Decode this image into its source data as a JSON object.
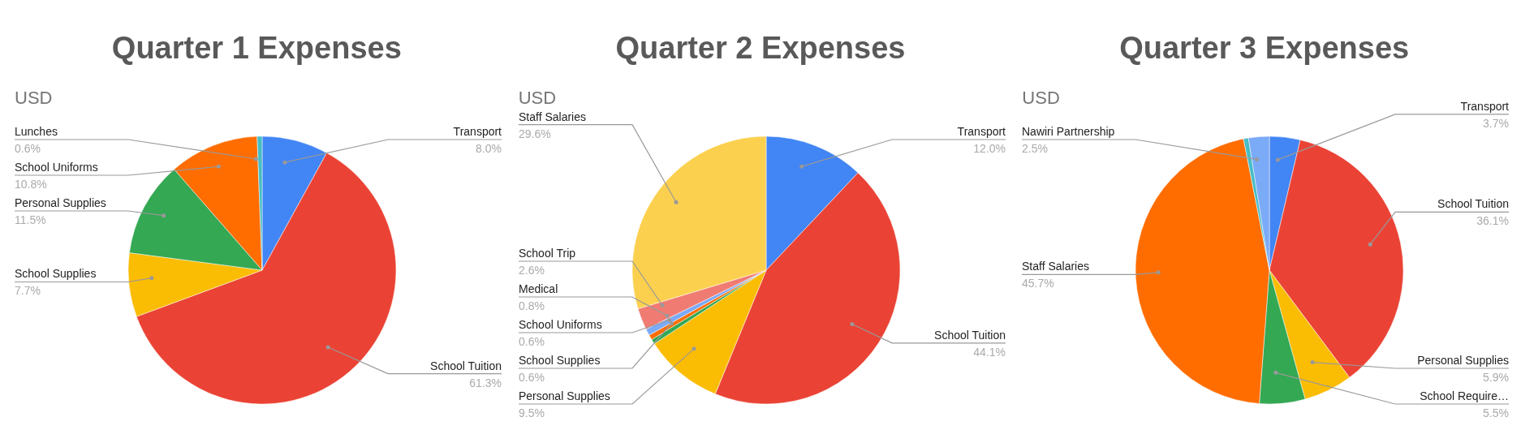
{
  "chart_data": [
    {
      "type": "pie",
      "title": "Quarter 1 Expenses",
      "subtitle": "USD",
      "categories": [
        "Transport",
        "School Tuition",
        "School Supplies",
        "Personal Supplies",
        "School Uniforms",
        "Lunches"
      ],
      "values": [
        8.0,
        61.3,
        7.7,
        11.5,
        10.8,
        0.6
      ],
      "colors": [
        "#4285f4",
        "#ea4335",
        "#fbbc04",
        "#34a853",
        "#ff6d01",
        "#46bdc6"
      ],
      "value_labels": [
        "8.0%",
        "61.3%",
        "7.7%",
        "11.5%",
        "10.8%",
        "0.6%"
      ]
    },
    {
      "type": "pie",
      "title": "Quarter 2 Expenses",
      "subtitle": "USD",
      "categories": [
        "Transport",
        "School Tuition",
        "Personal Supplies",
        "School Supplies",
        "School Uniforms",
        "Medical",
        "School Trip",
        "Staff Salaries"
      ],
      "values": [
        12.0,
        44.1,
        9.5,
        0.6,
        0.6,
        0.8,
        2.6,
        29.6
      ],
      "colors": [
        "#4285f4",
        "#ea4335",
        "#fbbc04",
        "#34a853",
        "#ff6d01",
        "#7baaf7",
        "#f07b72",
        "#fcd04f"
      ],
      "value_labels": [
        "12.0%",
        "44.1%",
        "9.5%",
        "0.6%",
        "0.6%",
        "0.8%",
        "2.6%",
        "29.6%"
      ]
    },
    {
      "type": "pie",
      "title": "Quarter 3 Expenses",
      "subtitle": "USD",
      "categories": [
        "Transport",
        "School Tuition",
        "Personal Supplies",
        "School Require…",
        "Staff Salaries",
        null,
        "Nawiri Partnership"
      ],
      "values": [
        3.7,
        36.1,
        5.9,
        5.5,
        45.7,
        0.6,
        2.5
      ],
      "colors": [
        "#4285f4",
        "#ea4335",
        "#fbbc04",
        "#34a853",
        "#ff6d01",
        "#46bdc6",
        "#7baaf7"
      ],
      "value_labels": [
        "3.7%",
        "36.1%",
        "5.9%",
        "5.5%",
        "45.7%",
        null,
        "2.5%"
      ]
    }
  ]
}
